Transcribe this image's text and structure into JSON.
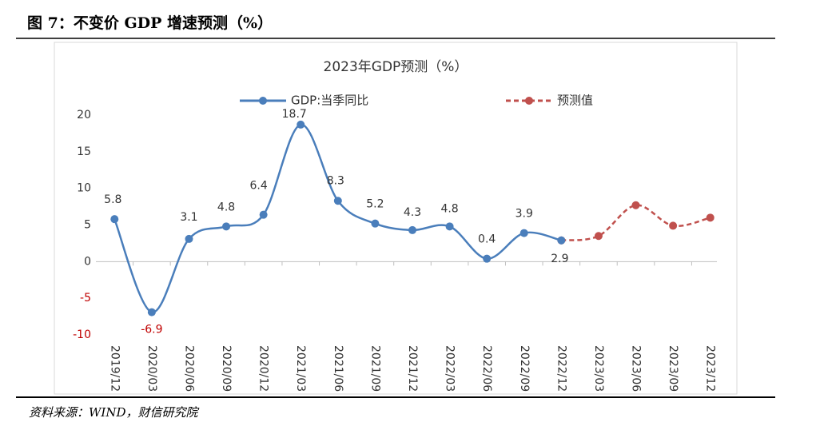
{
  "header": {
    "title": "图 7：不变价 GDP 增速预测（%）"
  },
  "chart_data": {
    "type": "line",
    "title": "2023年GDP预测（%）",
    "categories": [
      "2019/12",
      "2020/03",
      "2020/06",
      "2020/09",
      "2020/12",
      "2021/03",
      "2021/06",
      "2021/09",
      "2021/12",
      "2022/03",
      "2022/06",
      "2022/09",
      "2022/12",
      "2023/03",
      "2023/06",
      "2023/09",
      "2023/12"
    ],
    "series": [
      {
        "name": "GDP:当季同比",
        "color": "#4a7ebb",
        "values": [
          5.8,
          -6.9,
          3.1,
          4.8,
          6.4,
          18.7,
          8.3,
          5.2,
          4.3,
          4.8,
          0.4,
          3.9,
          2.9,
          null,
          null,
          null,
          null
        ]
      },
      {
        "name": "预测值",
        "color": "#c0504d",
        "values": [
          null,
          null,
          null,
          null,
          null,
          null,
          null,
          null,
          null,
          null,
          null,
          null,
          2.9,
          3.5,
          7.7,
          4.9,
          6.0
        ]
      }
    ],
    "ylim": [
      -10,
      20
    ],
    "yticks": [
      -10,
      -5,
      0,
      5,
      10,
      15,
      20
    ]
  },
  "footer": {
    "source": "资料来源：WIND，财信研究院"
  }
}
